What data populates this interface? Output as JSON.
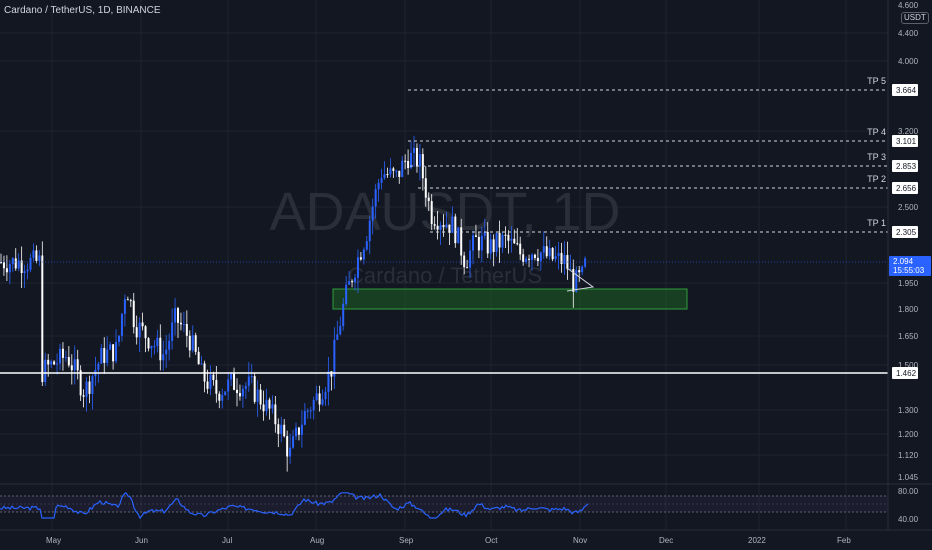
{
  "header": {
    "title": "Cardano / TetherUS, 1D, BINANCE"
  },
  "currency_badge": "USDT",
  "watermark": {
    "symbol": "ADAUSDT, 1D",
    "name": "Cardano / TetherUS"
  },
  "colors": {
    "background": "#131722",
    "candle": "#2962ff",
    "candle_alt": "#ffffff",
    "zone_fill": "#1e5a24",
    "zone_border": "#2e9e3c",
    "rsi_line": "#2962ff",
    "price_badge": "#2962ff"
  },
  "price_axis": {
    "ticks": [
      "4.600",
      "4.400",
      "4.000",
      "3.200",
      "2.500",
      "1.950",
      "1.800",
      "1.650",
      "1.500",
      "1.300",
      "1.200",
      "1.120",
      "1.045"
    ]
  },
  "time_axis": {
    "labels": [
      "May",
      "Jun",
      "Jul",
      "Aug",
      "Sep",
      "Oct",
      "Nov",
      "Dec",
      "2022",
      "Feb"
    ]
  },
  "targets": [
    {
      "label": "TP 5",
      "price": "3.664"
    },
    {
      "label": "TP 4",
      "price": "3.101"
    },
    {
      "label": "TP 3",
      "price": "2.853"
    },
    {
      "label": "TP 2",
      "price": "2.656"
    },
    {
      "label": "TP 1",
      "price": "2.305"
    }
  ],
  "current_price": {
    "price": "2.094",
    "countdown": "15:55:03"
  },
  "support_line": {
    "price": "1.462"
  },
  "support_zone": {
    "low": 1.8,
    "high": 1.91
  },
  "rsi": {
    "upper": "80.00",
    "lower": "40.00"
  },
  "chart_data": {
    "type": "candlestick",
    "price_scale": [
      [
        4.6,
        5
      ],
      [
        4.4,
        33
      ],
      [
        4.0,
        61
      ],
      [
        3.664,
        90
      ],
      [
        3.2,
        131
      ],
      [
        3.101,
        141
      ],
      [
        2.853,
        166
      ],
      [
        2.656,
        188
      ],
      [
        2.5,
        207
      ],
      [
        2.305,
        232
      ],
      [
        2.094,
        262
      ],
      [
        1.95,
        283
      ],
      [
        1.8,
        309
      ],
      [
        1.65,
        336
      ],
      [
        1.5,
        365
      ],
      [
        1.462,
        373
      ],
      [
        1.3,
        410
      ],
      [
        1.2,
        434
      ],
      [
        1.12,
        455
      ],
      [
        1.045,
        477
      ]
    ],
    "close_path": [
      [
        "Apr 27",
        1.47
      ],
      [
        "May 6",
        1.55
      ],
      [
        "May 12",
        1.38
      ],
      [
        "May 18",
        1.55
      ],
      [
        "May 23",
        1.58
      ],
      [
        "May 26",
        1.95
      ],
      [
        "May 29",
        1.72
      ],
      [
        "Jun 3",
        1.65
      ],
      [
        "Jun 9",
        1.55
      ],
      [
        "Jun 13",
        1.75
      ],
      [
        "Jun 18",
        1.63
      ],
      [
        "Jun 22",
        1.45
      ],
      [
        "Jun 27",
        1.38
      ],
      [
        "Jul 3",
        1.42
      ],
      [
        "Jul 9",
        1.4
      ],
      [
        "Jul 15",
        1.3
      ],
      [
        "Jul 19",
        1.22
      ],
      [
        "Jul 22",
        1.12
      ],
      [
        "Jul 27",
        1.28
      ],
      [
        "Aug 1",
        1.35
      ],
      [
        "Aug 6",
        1.47
      ],
      [
        "Aug 10",
        1.8
      ],
      [
        "Aug 14",
        2.05
      ],
      [
        "Aug 18",
        2.3
      ],
      [
        "Aug 23",
        2.8
      ],
      [
        "Aug 28",
        2.75
      ],
      [
        "Sep 2",
        2.95
      ],
      [
        "Sep 6",
        2.9
      ],
      [
        "Sep 10",
        2.45
      ],
      [
        "Sep 14",
        2.4
      ],
      [
        "Sep 18",
        2.35
      ],
      [
        "Sep 22",
        2.1
      ],
      [
        "Sep 26",
        2.25
      ],
      [
        "Oct 1",
        2.2
      ],
      [
        "Oct 6",
        2.25
      ],
      [
        "Oct 11",
        2.15
      ],
      [
        "Oct 16",
        2.18
      ],
      [
        "Oct 21",
        2.12
      ],
      [
        "Oct 26",
        2.1
      ],
      [
        "Oct 29",
        1.95
      ],
      [
        "Nov 2",
        2.0
      ],
      [
        "Nov 3",
        2.094
      ]
    ]
  }
}
